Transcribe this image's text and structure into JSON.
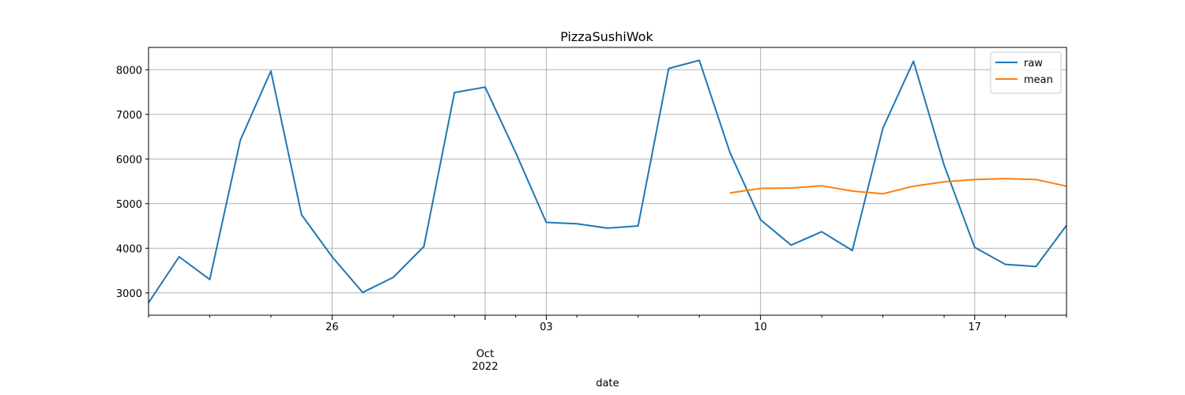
{
  "chart_data": {
    "type": "line",
    "title": "PizzaSushiWok",
    "xlabel": "date",
    "ylabel": "",
    "x": [
      "2022-09-20",
      "2022-09-21",
      "2022-09-22",
      "2022-09-23",
      "2022-09-24",
      "2022-09-25",
      "2022-09-26",
      "2022-09-27",
      "2022-09-28",
      "2022-09-29",
      "2022-09-30",
      "2022-10-01",
      "2022-10-02",
      "2022-10-03",
      "2022-10-04",
      "2022-10-05",
      "2022-10-06",
      "2022-10-07",
      "2022-10-08",
      "2022-10-09",
      "2022-10-10",
      "2022-10-11",
      "2022-10-12",
      "2022-10-13",
      "2022-10-14",
      "2022-10-15",
      "2022-10-16",
      "2022-10-17",
      "2022-10-18",
      "2022-10-19",
      "2022-10-20"
    ],
    "xlim": [
      "2022-09-20",
      "2022-10-20"
    ],
    "ylim": [
      2500,
      8500
    ],
    "x_ticks_major": [
      {
        "date": "2022-09-26",
        "label": "26"
      },
      {
        "date": "2022-10-01",
        "label": "Oct\n2022"
      },
      {
        "date": "2022-10-03",
        "label": "03"
      },
      {
        "date": "2022-10-10",
        "label": "10"
      },
      {
        "date": "2022-10-17",
        "label": "17"
      }
    ],
    "y_ticks": [
      3000,
      4000,
      5000,
      6000,
      7000,
      8000
    ],
    "grid": true,
    "legend_position": "top-right",
    "colors": {
      "raw": "#1f77b4",
      "mean": "#ff7f0e"
    },
    "series": [
      {
        "name": "raw",
        "values": [
          2780,
          3810,
          3300,
          6420,
          7970,
          4750,
          3810,
          3010,
          3350,
          4040,
          7490,
          7610,
          6140,
          4580,
          4550,
          4450,
          4500,
          8030,
          8210,
          6150,
          4640,
          4070,
          4370,
          3950,
          6690,
          8190,
          5860,
          4020,
          3640,
          3590,
          4510
        ]
      },
      {
        "name": "mean",
        "values": [
          null,
          null,
          null,
          null,
          null,
          null,
          null,
          null,
          null,
          null,
          null,
          null,
          null,
          null,
          null,
          null,
          null,
          null,
          null,
          5240,
          5340,
          5350,
          5400,
          5280,
          5220,
          5390,
          5490,
          5540,
          5560,
          5540,
          5390
        ]
      }
    ]
  }
}
